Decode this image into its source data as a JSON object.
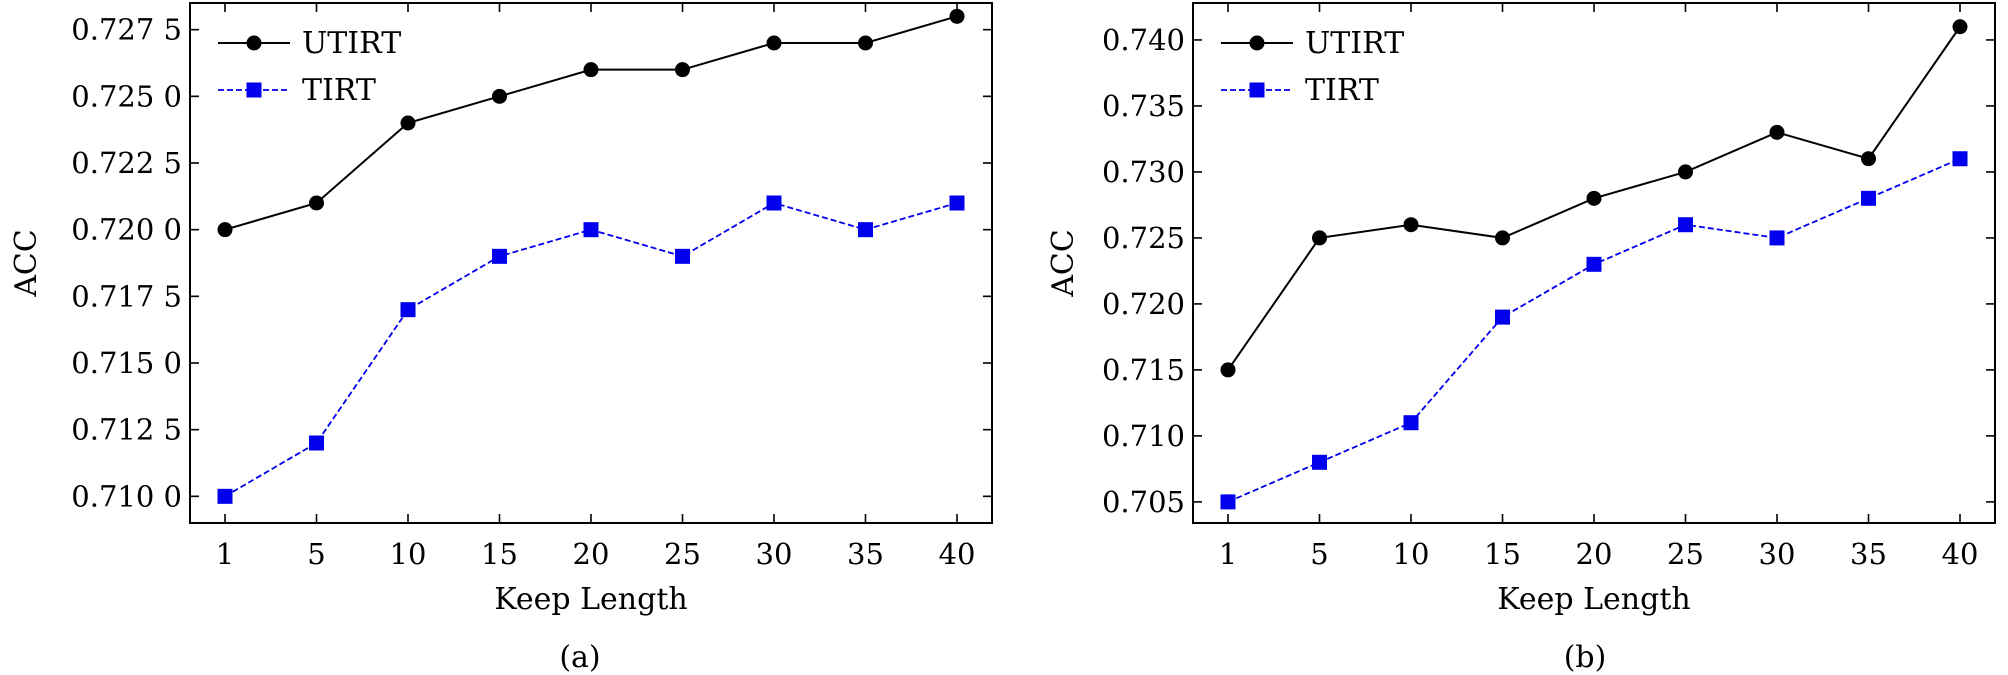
{
  "chart_data": [
    {
      "type": "line",
      "caption": "(a)",
      "xlabel": "Keep Length",
      "ylabel": "ACC",
      "categories": [
        "1",
        "5",
        "10",
        "15",
        "20",
        "25",
        "30",
        "35",
        "40"
      ],
      "ylim": [
        0.709,
        0.7285
      ],
      "yticks": [
        0.71,
        0.7125,
        0.715,
        0.7175,
        0.72,
        0.7225,
        0.725,
        0.7275
      ],
      "ytick_labels": [
        "0.710 0",
        "0.712 5",
        "0.715 0",
        "0.717 5",
        "0.720 0",
        "0.722 5",
        "0.725 0",
        "0.727 5"
      ],
      "legend_position": "top-left",
      "grid": false,
      "series": [
        {
          "name": "UTIRT",
          "color": "#000000",
          "marker": "circle",
          "linestyle": "solid",
          "values": [
            0.72,
            0.721,
            0.724,
            0.725,
            0.726,
            0.726,
            0.727,
            0.727,
            0.728
          ]
        },
        {
          "name": "TIRT",
          "color": "#0000ee",
          "marker": "square",
          "linestyle": "dashed",
          "values": [
            0.71,
            0.712,
            0.717,
            0.719,
            0.72,
            0.719,
            0.721,
            0.72,
            0.721
          ]
        }
      ]
    },
    {
      "type": "line",
      "caption": "(b)",
      "xlabel": "Keep Length",
      "ylabel": "ACC",
      "categories": [
        "1",
        "5",
        "10",
        "15",
        "20",
        "25",
        "30",
        "35",
        "40"
      ],
      "ylim": [
        0.7034,
        0.7428
      ],
      "yticks": [
        0.705,
        0.71,
        0.715,
        0.72,
        0.725,
        0.73,
        0.735,
        0.74
      ],
      "ytick_labels": [
        "0.705",
        "0.710",
        "0.715",
        "0.720",
        "0.725",
        "0.730",
        "0.735",
        "0.740"
      ],
      "legend_position": "top-left",
      "grid": false,
      "series": [
        {
          "name": "UTIRT",
          "color": "#000000",
          "marker": "circle",
          "linestyle": "solid",
          "values": [
            0.715,
            0.725,
            0.726,
            0.725,
            0.728,
            0.73,
            0.733,
            0.731,
            0.741
          ]
        },
        {
          "name": "TIRT",
          "color": "#0000ee",
          "marker": "square",
          "linestyle": "dashed",
          "values": [
            0.705,
            0.708,
            0.711,
            0.719,
            0.723,
            0.726,
            0.725,
            0.728,
            0.731
          ]
        }
      ]
    }
  ]
}
